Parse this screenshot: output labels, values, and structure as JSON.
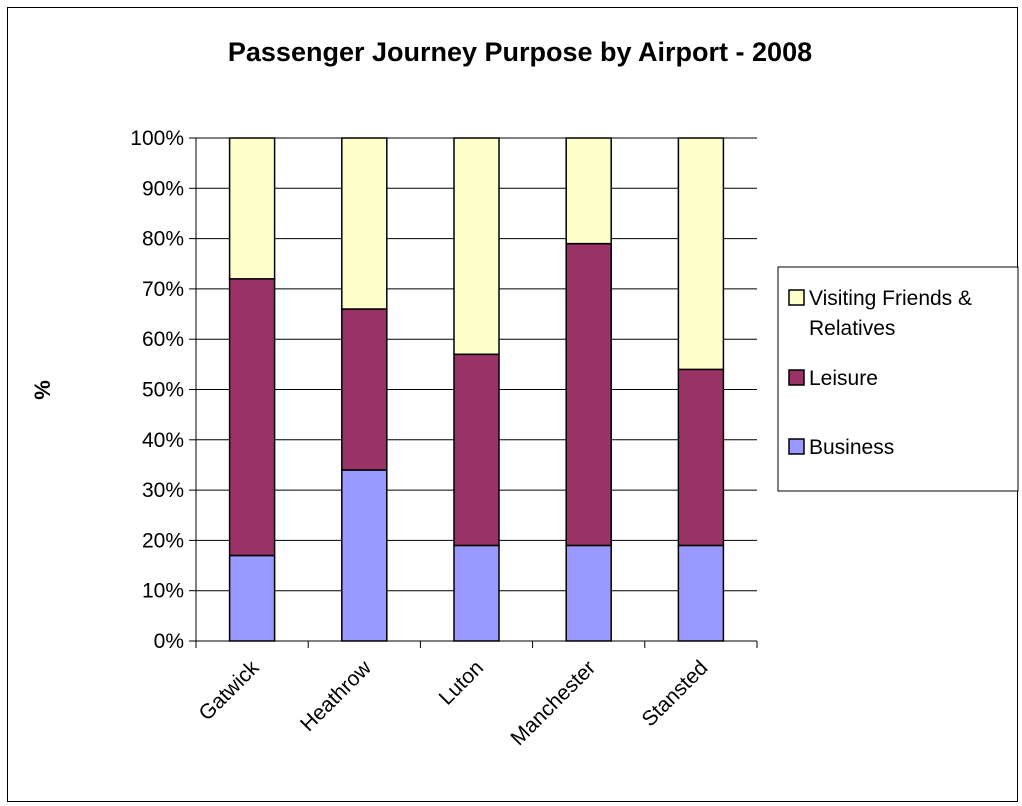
{
  "chart_data": {
    "type": "bar",
    "stacked": true,
    "title": "Passenger Journey Purpose by Airport - 2008",
    "xlabel": "",
    "ylabel": "%",
    "categories": [
      "Gatwick",
      "Heathrow",
      "Luton",
      "Manchester",
      "Stansted"
    ],
    "yticks": [
      "0%",
      "10%",
      "20%",
      "30%",
      "40%",
      "50%",
      "60%",
      "70%",
      "80%",
      "90%",
      "100%"
    ],
    "ylim": [
      0,
      100
    ],
    "grid": "horizontal",
    "legend_position": "right",
    "series": [
      {
        "name": "Business",
        "color": "#9999ff",
        "values": [
          17,
          34,
          19,
          19,
          19
        ]
      },
      {
        "name": "Leisure",
        "color": "#993366",
        "values": [
          55,
          32,
          38,
          60,
          35
        ]
      },
      {
        "name": "Visiting Friends & Relatives",
        "color": "#ffffcc",
        "values": [
          28,
          34,
          43,
          21,
          46
        ]
      }
    ],
    "legend": {
      "items": [
        {
          "lines": [
            "Visiting Friends &",
            "Relatives"
          ],
          "color": "#ffffcc"
        },
        {
          "lines": [
            "Leisure"
          ],
          "color": "#993366"
        },
        {
          "lines": [
            "Business"
          ],
          "color": "#9999ff"
        }
      ]
    }
  }
}
